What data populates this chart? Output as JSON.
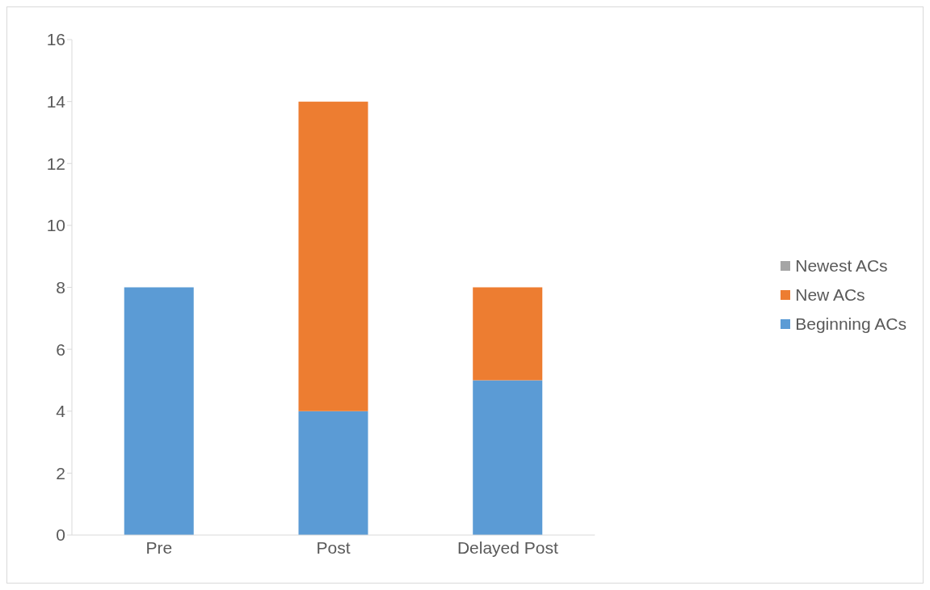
{
  "chart_data": {
    "type": "bar",
    "stacked": true,
    "categories": [
      "Pre",
      "Post",
      "Delayed Post"
    ],
    "series": [
      {
        "name": "Beginning ACs",
        "color": "#5b9bd5",
        "values": [
          8,
          4,
          5
        ]
      },
      {
        "name": "New ACs",
        "color": "#ed7d31",
        "values": [
          0,
          10,
          3
        ]
      },
      {
        "name": "Newest ACs",
        "color": "#a5a5a5",
        "values": [
          0,
          0,
          0
        ]
      }
    ],
    "ylim": [
      0,
      16
    ],
    "yticks": [
      0,
      2,
      4,
      6,
      8,
      10,
      12,
      14,
      16
    ],
    "grid": false,
    "legend": "right"
  }
}
